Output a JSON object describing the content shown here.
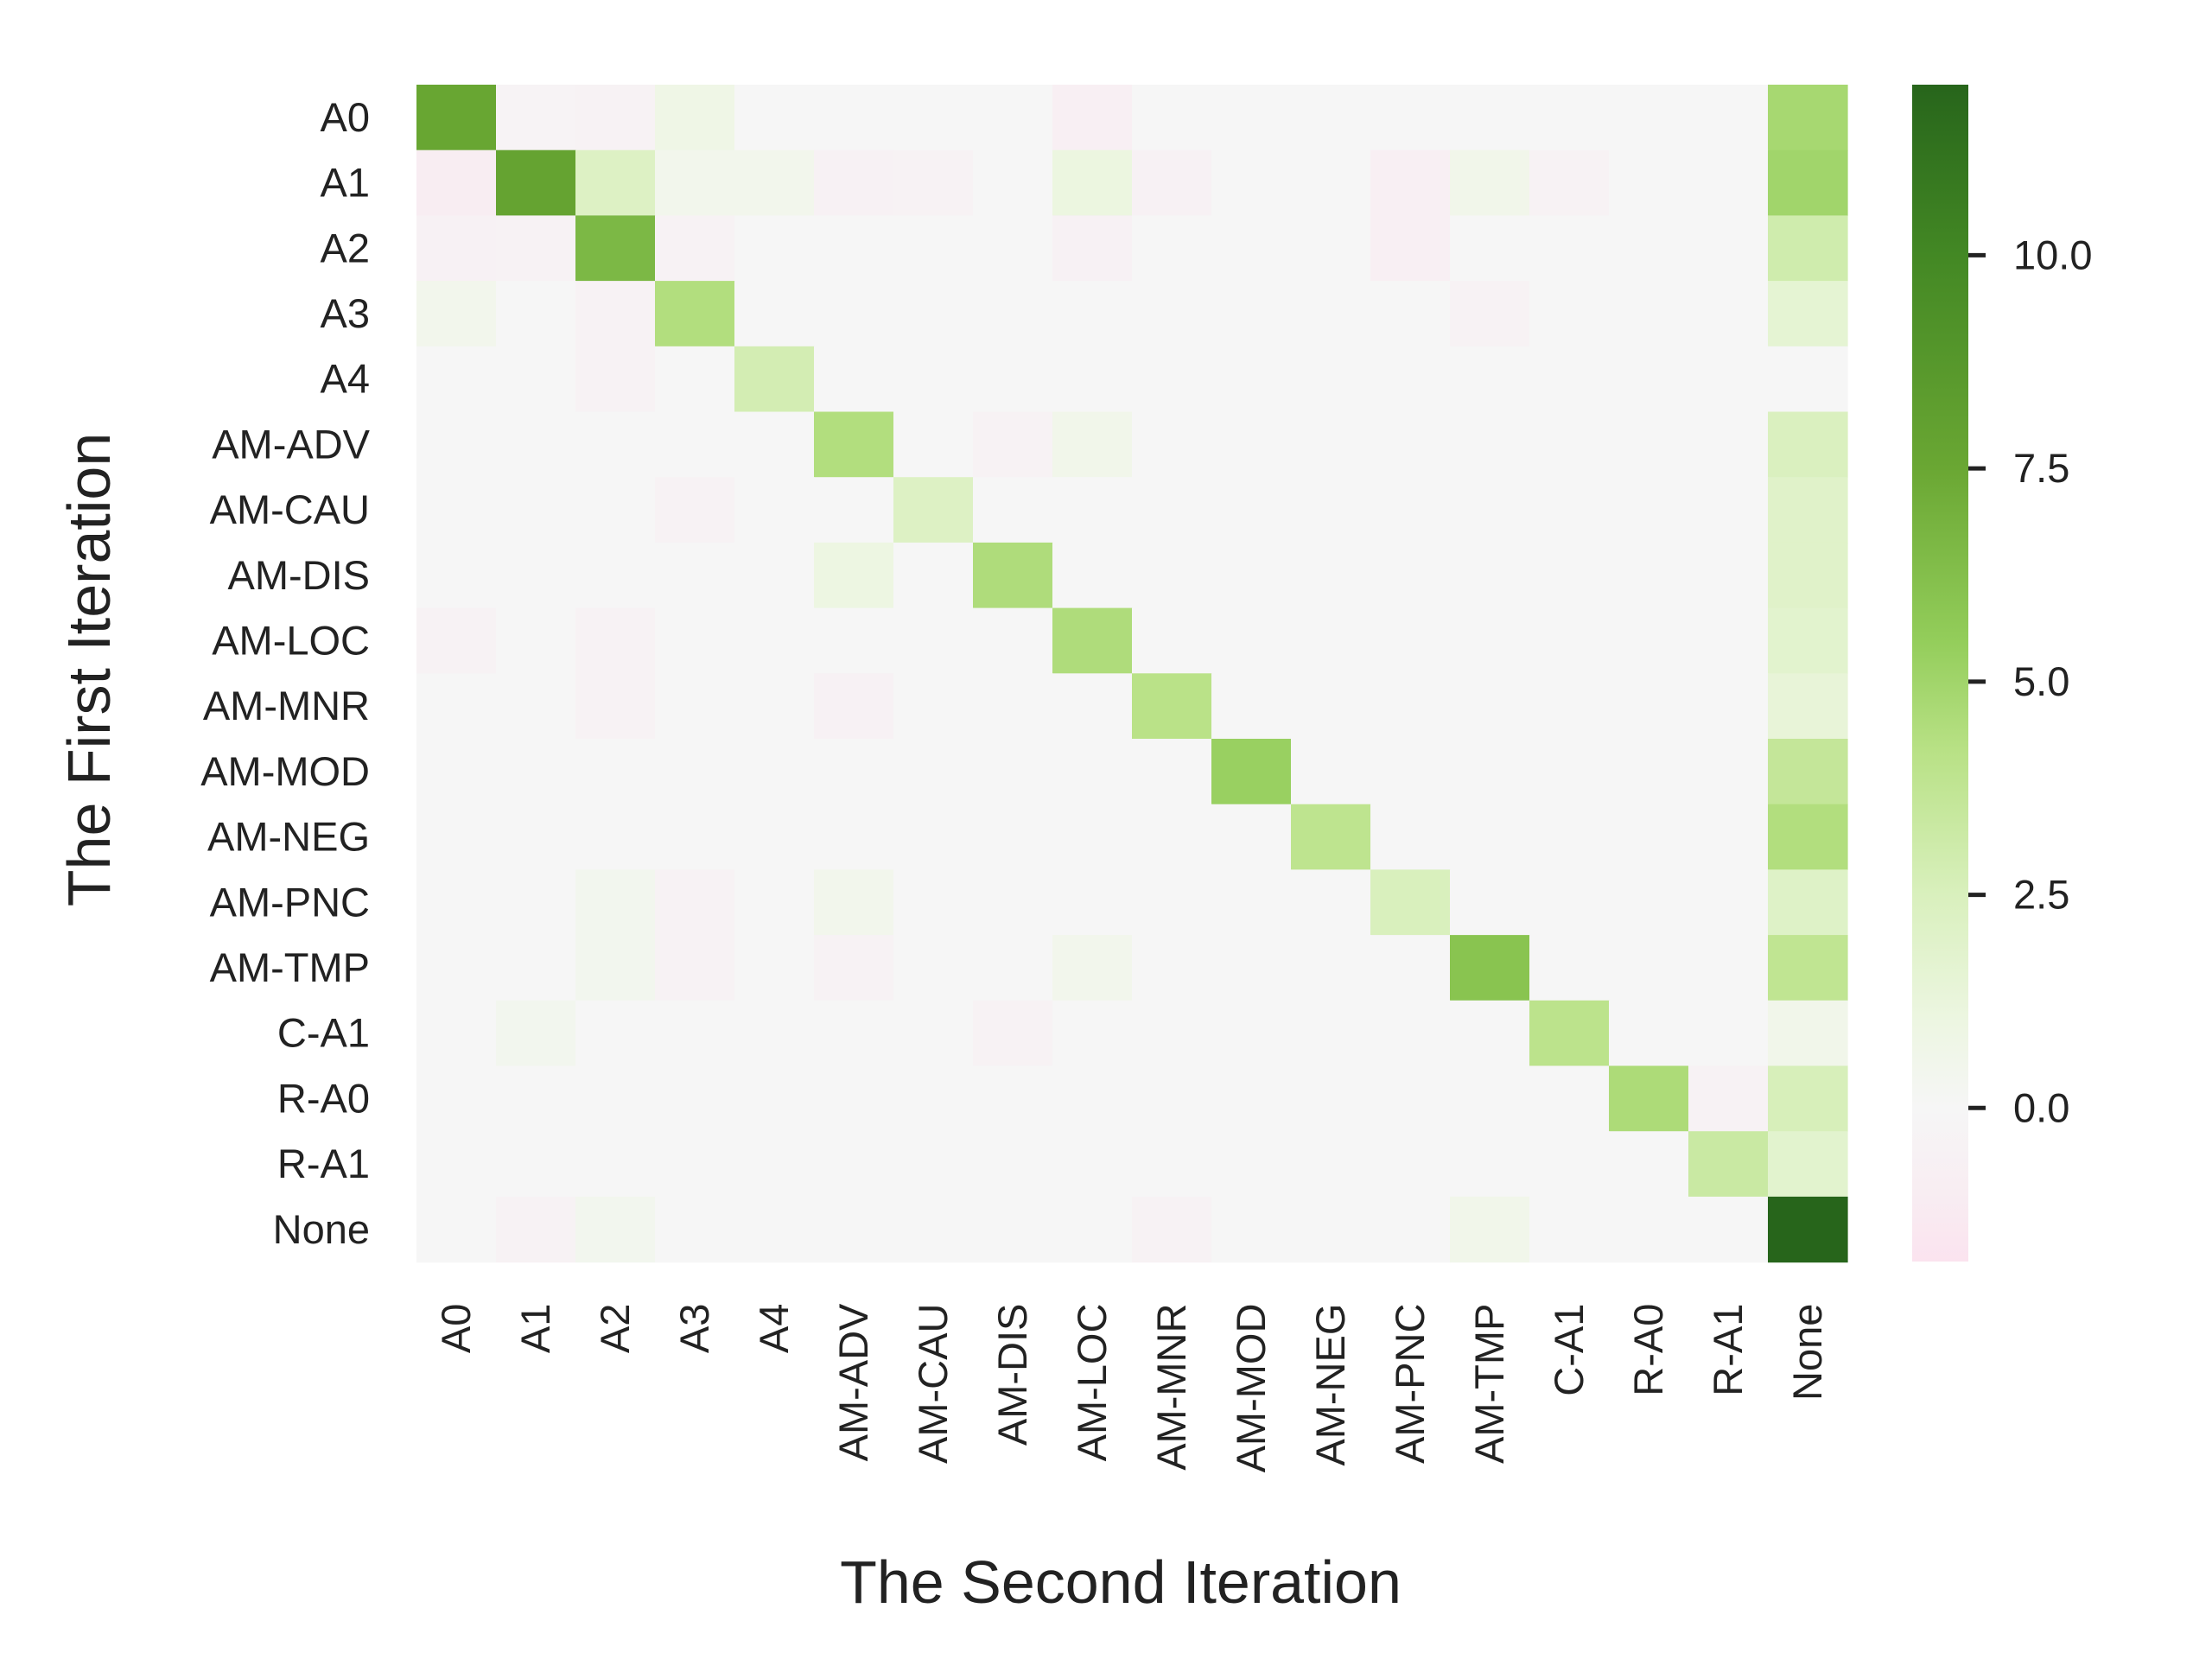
{
  "chart_data": {
    "type": "heatmap",
    "xlabel": "The Second Iteration",
    "ylabel": "The First Iteration",
    "x_categories": [
      "A0",
      "A1",
      "A2",
      "A3",
      "A4",
      "AM-ADV",
      "AM-CAU",
      "AM-DIS",
      "AM-LOC",
      "AM-MNR",
      "AM-MOD",
      "AM-NEG",
      "AM-PNC",
      "AM-TMP",
      "C-A1",
      "R-A0",
      "R-A1",
      "None"
    ],
    "y_categories": [
      "A0",
      "A1",
      "A2",
      "A3",
      "A4",
      "AM-ADV",
      "AM-CAU",
      "AM-DIS",
      "AM-LOC",
      "AM-MNR",
      "AM-MOD",
      "AM-NEG",
      "AM-PNC",
      "AM-TMP",
      "C-A1",
      "R-A0",
      "R-A1",
      "None"
    ],
    "values": [
      [
        7.6,
        -0.3,
        -0.5,
        0.8,
        0,
        0,
        0,
        0,
        -0.8,
        0,
        0,
        0,
        0,
        0,
        0,
        0,
        0,
        4.8
      ],
      [
        -1.0,
        7.8,
        2.2,
        0.5,
        0.5,
        -0.6,
        -0.4,
        0,
        1.1,
        -0.6,
        0,
        0,
        -0.8,
        0.6,
        -0.4,
        0,
        0,
        5.0
      ],
      [
        -0.6,
        -0.5,
        6.6,
        -0.4,
        0,
        0,
        0,
        0,
        -0.6,
        0,
        0,
        0,
        -0.8,
        0,
        0,
        0,
        0,
        3.0
      ],
      [
        0.5,
        0,
        -0.4,
        4.4,
        0,
        0,
        0,
        0,
        0,
        0,
        0,
        0,
        0,
        -0.5,
        0,
        0,
        0,
        1.6
      ],
      [
        0,
        0,
        -0.4,
        0,
        2.8,
        0,
        0,
        0,
        0,
        0,
        0,
        0,
        0,
        0,
        0,
        0,
        0,
        0
      ],
      [
        0,
        0,
        0,
        0,
        0,
        4.4,
        0,
        -0.4,
        0.6,
        0,
        0,
        0,
        0,
        0,
        0,
        0,
        0,
        2.4
      ],
      [
        0,
        0,
        0,
        -0.4,
        0,
        0,
        2.2,
        0,
        0,
        0,
        0,
        0,
        0,
        0,
        0,
        0,
        0,
        2.0
      ],
      [
        0,
        0,
        0,
        0,
        0,
        1.0,
        0,
        4.5,
        0,
        0,
        0,
        0,
        0,
        0,
        0,
        0,
        0,
        2.0
      ],
      [
        -0.5,
        0,
        -0.4,
        0,
        0,
        0,
        0,
        0,
        4.5,
        0,
        0,
        0,
        0,
        0,
        0,
        0,
        0,
        1.8
      ],
      [
        0,
        0,
        -0.4,
        0,
        0,
        -0.6,
        0,
        0,
        0,
        4.1,
        0,
        0,
        0,
        0,
        0,
        0,
        0,
        1.4
      ],
      [
        0,
        0,
        0,
        0,
        0,
        0,
        0,
        0,
        0,
        0,
        5.3,
        0,
        0,
        0,
        0,
        0,
        0,
        3.6
      ],
      [
        0,
        0,
        0,
        0,
        0,
        0,
        0,
        0,
        0,
        0,
        0,
        3.9,
        0,
        0,
        0,
        0,
        0,
        4.4
      ],
      [
        0,
        0,
        0.4,
        -0.4,
        0,
        0.5,
        0,
        0,
        0,
        0,
        0,
        0,
        2.5,
        0,
        0,
        0,
        0,
        2.1
      ],
      [
        0,
        0,
        0.4,
        -0.4,
        0,
        -0.5,
        0,
        0,
        0.5,
        0,
        0,
        0,
        0,
        6.0,
        0,
        0,
        0,
        3.8
      ],
      [
        0,
        0.4,
        0,
        0,
        0,
        0,
        0,
        -0.4,
        0,
        0,
        0,
        0,
        0,
        0,
        4.0,
        0,
        0,
        0.6
      ],
      [
        0,
        0,
        0,
        0,
        0,
        0,
        0,
        0,
        0,
        0,
        0,
        0,
        0,
        0,
        0,
        4.6,
        -0.5,
        2.6
      ],
      [
        0,
        0,
        0,
        0,
        0,
        0,
        0,
        0,
        0,
        0,
        0,
        0,
        0,
        0,
        0,
        0,
        3.3,
        1.8
      ],
      [
        0,
        -0.5,
        0.4,
        0,
        0,
        0,
        0,
        0,
        0,
        -0.5,
        0,
        0,
        0,
        0.6,
        0,
        0,
        0,
        12.0
      ]
    ],
    "colorbar": {
      "vmin": -1.8,
      "vmax": 12.0,
      "ticks": [
        0.0,
        2.5,
        5.0,
        7.5,
        10.0
      ],
      "tick_labels": [
        "0.0",
        "2.5",
        "5.0",
        "7.5",
        "10.0"
      ]
    },
    "colormap": [
      {
        "v": -1.8,
        "c": "#fbe3ef"
      },
      {
        "v": -1.0,
        "c": "#f8edf2"
      },
      {
        "v": 0.0,
        "c": "#f6f6f6"
      },
      {
        "v": 1.0,
        "c": "#edf6e2"
      },
      {
        "v": 2.5,
        "c": "#d9f0bd"
      },
      {
        "v": 4.2,
        "c": "#b8e185"
      },
      {
        "v": 5.5,
        "c": "#93cd5a"
      },
      {
        "v": 7.5,
        "c": "#6aa733"
      },
      {
        "v": 10.0,
        "c": "#438824"
      },
      {
        "v": 12.0,
        "c": "#27651b"
      }
    ]
  }
}
